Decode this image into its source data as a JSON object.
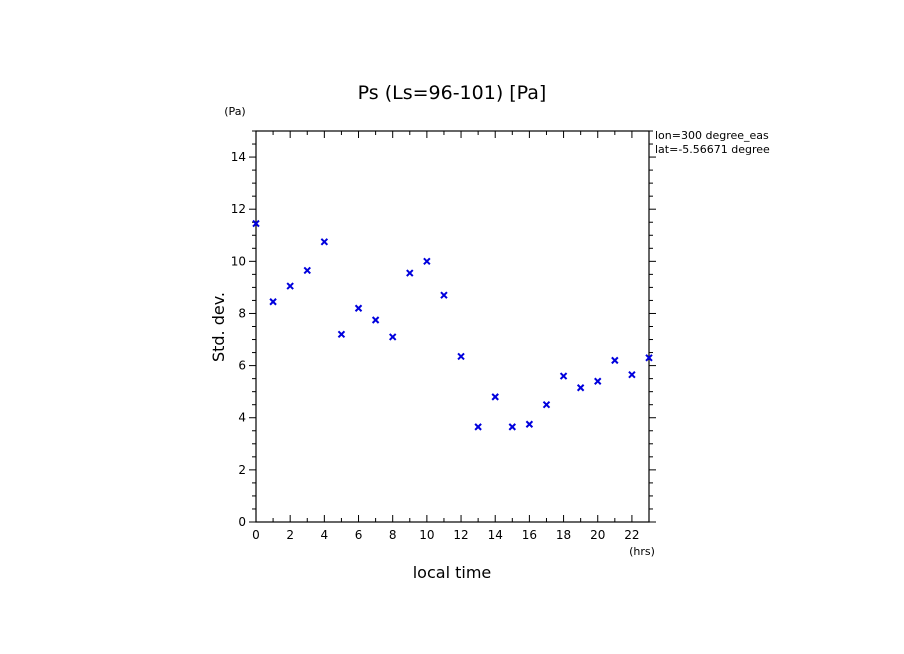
{
  "chart_data": {
    "type": "scatter",
    "title": "Ps (Ls=96-101) [Pa]",
    "xlabel": "local time",
    "ylabel": "Std. dev.",
    "x_unit": "(hrs)",
    "y_unit": "(Pa)",
    "xlim": [
      0,
      23
    ],
    "ylim": [
      0,
      15
    ],
    "xticks": [
      0,
      2,
      4,
      6,
      8,
      10,
      12,
      14,
      16,
      18,
      20,
      22
    ],
    "yticks": [
      0,
      2,
      4,
      6,
      8,
      10,
      12,
      14
    ],
    "grid": false,
    "marker": "x",
    "color": "#0000dd",
    "annotations": [
      "lon=300 degree_eas",
      "lat=-5.56671 degree"
    ],
    "x": [
      0,
      1,
      2,
      3,
      4,
      5,
      6,
      7,
      8,
      9,
      10,
      11,
      12,
      13,
      14,
      15,
      16,
      17,
      18,
      19,
      20,
      21,
      22,
      23
    ],
    "y": [
      11.45,
      8.45,
      9.05,
      9.65,
      10.75,
      7.2,
      8.2,
      7.75,
      7.1,
      9.55,
      10.0,
      8.7,
      6.35,
      3.65,
      4.8,
      3.65,
      3.75,
      4.5,
      5.6,
      5.15,
      5.4,
      6.2,
      5.65,
      6.3
    ]
  }
}
